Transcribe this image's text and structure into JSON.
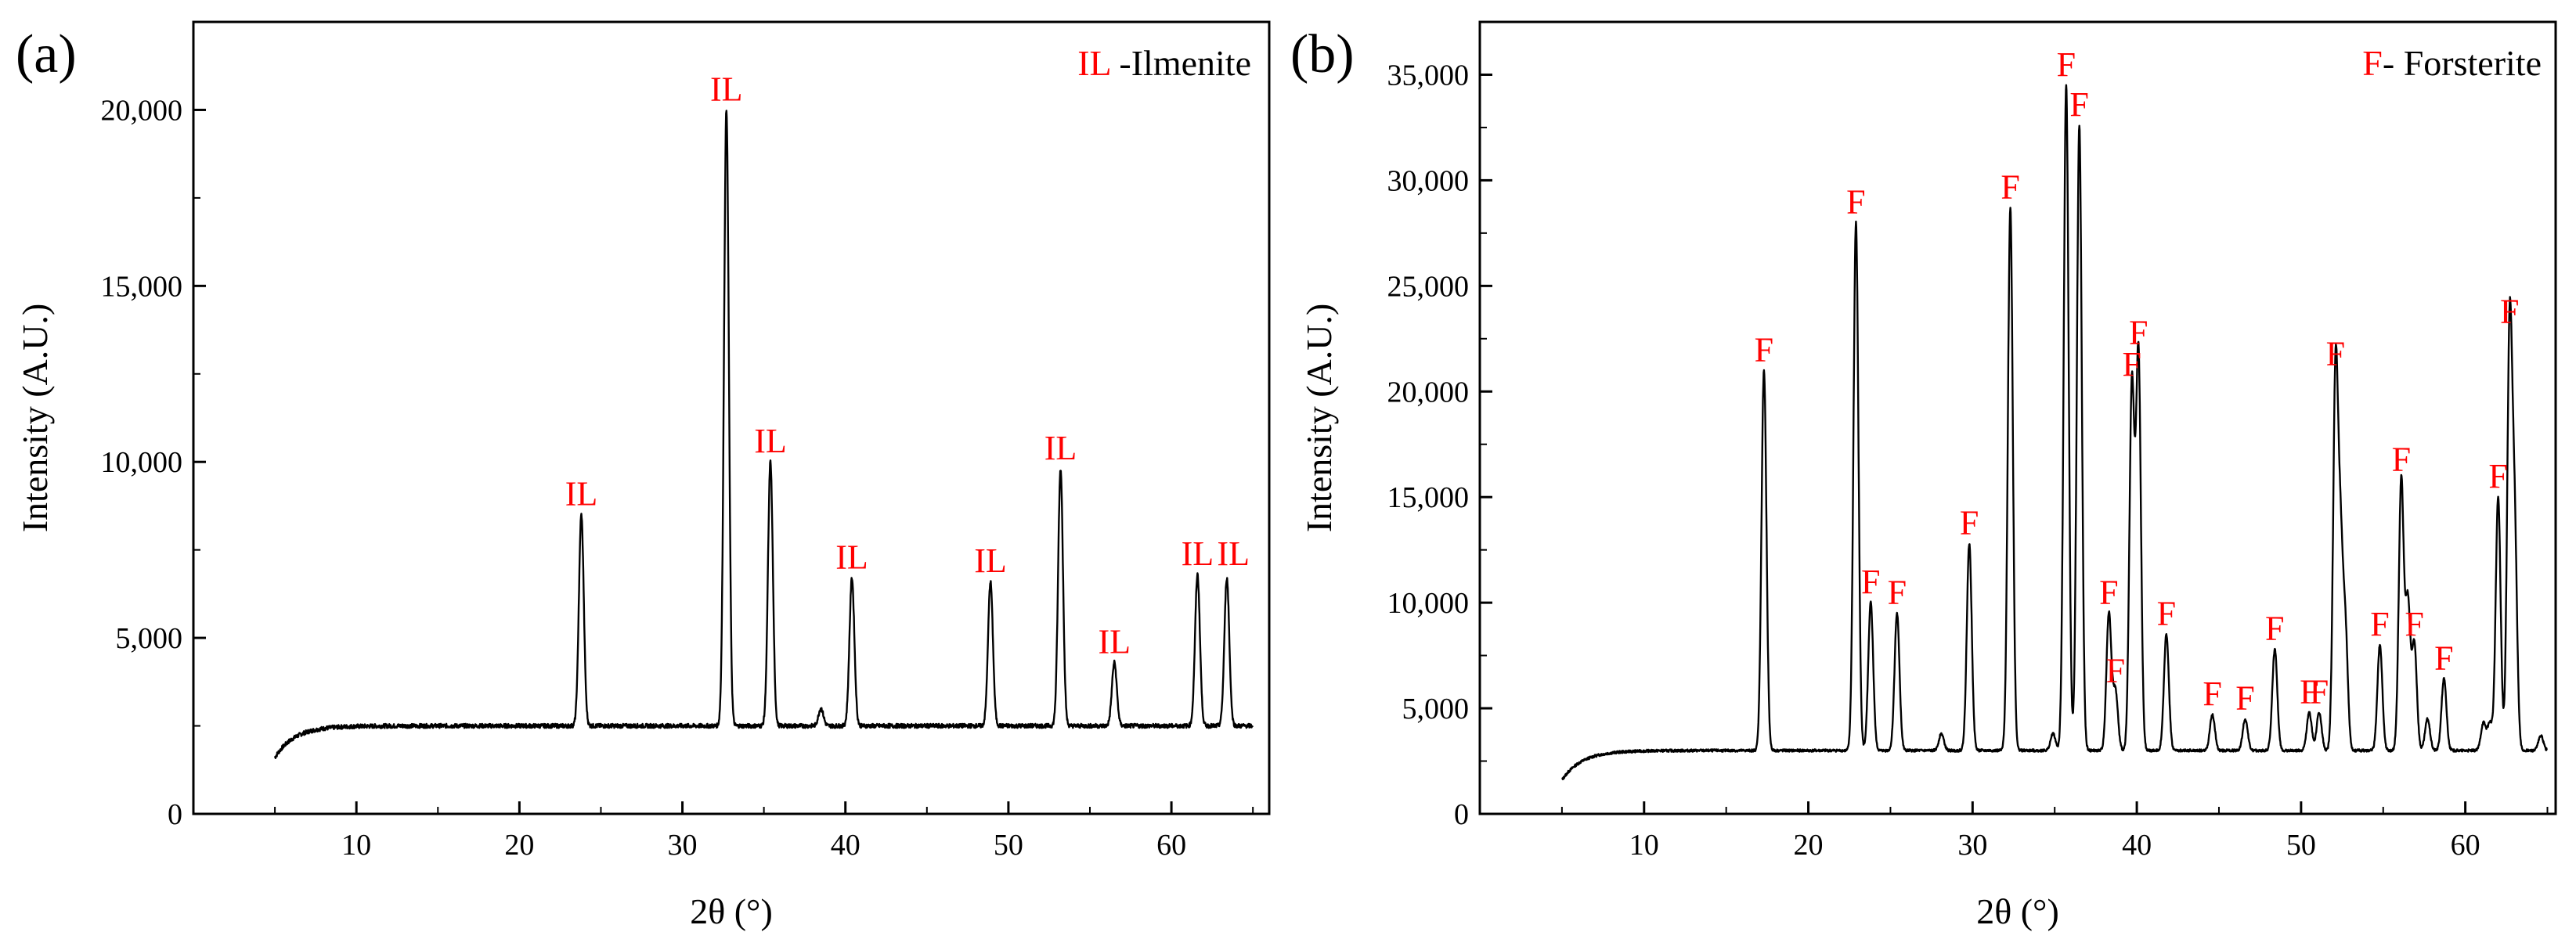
{
  "chart_data": [
    {
      "type": "line",
      "panel_label": "(a)",
      "title": "",
      "xlabel": "2θ (°)",
      "ylabel": "Intensity (A.U.)",
      "xlim": [
        0,
        66
      ],
      "ylim": [
        0,
        22500
      ],
      "xticks": [
        10,
        20,
        30,
        40,
        50,
        60
      ],
      "yticks": [
        0,
        5000,
        10000,
        15000,
        20000
      ],
      "xtick_labels": [
        "10",
        "20",
        "30",
        "40",
        "50",
        "60"
      ],
      "ytick_labels": [
        "0",
        "5,000",
        "10,000",
        "15,000",
        "20,000"
      ],
      "legend": {
        "symbol": "IL",
        "text": " -Ilmenite",
        "position": "top-right"
      },
      "marker_color": "#ff0000",
      "line_color": "#000000",
      "baseline": {
        "start_x": 5.0,
        "start_y": 1600,
        "end_x": 65.0,
        "plateau_y": 2500
      },
      "series": [
        {
          "name": "Ilmenite",
          "peaks": [
            {
              "x": 23.8,
              "y": 8500,
              "width": 0.15
            },
            {
              "x": 32.7,
              "y": 20000,
              "width": 0.15
            },
            {
              "x": 35.4,
              "y": 10000,
              "width": 0.15
            },
            {
              "x": 38.5,
              "y": 3000,
              "width": 0.15
            },
            {
              "x": 40.4,
              "y": 6700,
              "width": 0.15
            },
            {
              "x": 48.9,
              "y": 6600,
              "width": 0.15
            },
            {
              "x": 53.2,
              "y": 9800,
              "width": 0.15
            },
            {
              "x": 56.5,
              "y": 4300,
              "width": 0.15
            },
            {
              "x": 61.6,
              "y": 6800,
              "width": 0.15
            },
            {
              "x": 63.4,
              "y": 6700,
              "width": 0.15
            }
          ]
        }
      ],
      "annotations": [
        {
          "text": "IL",
          "x": 23.8,
          "y": 8500
        },
        {
          "text": "IL",
          "x": 32.7,
          "y": 20000
        },
        {
          "text": "IL",
          "x": 35.4,
          "y": 10000
        },
        {
          "text": "IL",
          "x": 40.4,
          "y": 6700
        },
        {
          "text": "IL",
          "x": 48.9,
          "y": 6600
        },
        {
          "text": "IL",
          "x": 53.2,
          "y": 9800
        },
        {
          "text": "IL",
          "x": 56.5,
          "y": 4300
        },
        {
          "text": "IL",
          "x": 61.6,
          "y": 6800
        },
        {
          "text": "IL",
          "x": 63.8,
          "y": 6800
        }
      ]
    },
    {
      "type": "line",
      "panel_label": "(b)",
      "title": "",
      "xlabel": "2θ (°)",
      "ylabel": "Intensity (A.U.)",
      "xlim": [
        0,
        65.5
      ],
      "ylim": [
        0,
        37500
      ],
      "xticks": [
        10,
        20,
        30,
        40,
        50,
        60
      ],
      "yticks": [
        0,
        5000,
        10000,
        15000,
        20000,
        25000,
        30000,
        35000
      ],
      "xtick_labels": [
        "10",
        "20",
        "30",
        "40",
        "50",
        "60"
      ],
      "ytick_labels": [
        "0",
        "5,000",
        "10,000",
        "15,000",
        "20,000",
        "25,000",
        "30,000",
        "35,000"
      ],
      "legend": {
        "symbol": "F",
        "text": "- Forsterite",
        "position": "top-right"
      },
      "marker_color": "#ff0000",
      "line_color": "#000000",
      "baseline": {
        "start_x": 5.0,
        "start_y": 1600,
        "end_x": 65.0,
        "plateau_y": 3000
      },
      "series": [
        {
          "name": "Forsterite",
          "peaks": [
            {
              "x": 17.3,
              "y": 21000,
              "width": 0.15
            },
            {
              "x": 22.9,
              "y": 28000,
              "width": 0.15
            },
            {
              "x": 23.8,
              "y": 10000,
              "width": 0.15
            },
            {
              "x": 25.4,
              "y": 9500,
              "width": 0.15
            },
            {
              "x": 28.1,
              "y": 3800,
              "width": 0.15
            },
            {
              "x": 29.8,
              "y": 12800,
              "width": 0.15
            },
            {
              "x": 32.3,
              "y": 28700,
              "width": 0.15
            },
            {
              "x": 34.9,
              "y": 3800,
              "width": 0.15
            },
            {
              "x": 35.7,
              "y": 34500,
              "width": 0.15
            },
            {
              "x": 36.5,
              "y": 32600,
              "width": 0.15
            },
            {
              "x": 38.3,
              "y": 9500,
              "width": 0.15
            },
            {
              "x": 38.7,
              "y": 5800,
              "width": 0.15
            },
            {
              "x": 39.7,
              "y": 20300,
              "width": 0.15
            },
            {
              "x": 40.1,
              "y": 21800,
              "width": 0.15
            },
            {
              "x": 41.8,
              "y": 8500,
              "width": 0.15
            },
            {
              "x": 44.6,
              "y": 4700,
              "width": 0.15
            },
            {
              "x": 46.6,
              "y": 4500,
              "width": 0.15
            },
            {
              "x": 48.4,
              "y": 7800,
              "width": 0.15
            },
            {
              "x": 50.5,
              "y": 4800,
              "width": 0.15
            },
            {
              "x": 51.1,
              "y": 4800,
              "width": 0.15
            },
            {
              "x": 52.1,
              "y": 20800,
              "width": 0.15
            },
            {
              "x": 52.4,
              "y": 12000,
              "width": 0.15
            },
            {
              "x": 52.7,
              "y": 8500,
              "width": 0.15
            },
            {
              "x": 54.8,
              "y": 8000,
              "width": 0.15
            },
            {
              "x": 56.1,
              "y": 15800,
              "width": 0.15
            },
            {
              "x": 56.5,
              "y": 10000,
              "width": 0.15
            },
            {
              "x": 56.9,
              "y": 8000,
              "width": 0.15
            },
            {
              "x": 57.7,
              "y": 4500,
              "width": 0.15
            },
            {
              "x": 58.7,
              "y": 6400,
              "width": 0.15
            },
            {
              "x": 61.1,
              "y": 4300,
              "width": 0.15
            },
            {
              "x": 61.5,
              "y": 4300,
              "width": 0.15
            },
            {
              "x": 62.0,
              "y": 15000,
              "width": 0.15
            },
            {
              "x": 62.7,
              "y": 22800,
              "width": 0.15
            },
            {
              "x": 63.0,
              "y": 13300,
              "width": 0.15
            },
            {
              "x": 64.6,
              "y": 3700,
              "width": 0.15
            }
          ]
        }
      ],
      "annotations": [
        {
          "text": "F",
          "x": 17.3,
          "y": 21000
        },
        {
          "text": "F",
          "x": 22.9,
          "y": 28000
        },
        {
          "text": "F",
          "x": 23.8,
          "y": 10000
        },
        {
          "text": "F",
          "x": 25.4,
          "y": 9500
        },
        {
          "text": "F",
          "x": 29.8,
          "y": 12800
        },
        {
          "text": "F",
          "x": 32.3,
          "y": 28700
        },
        {
          "text": "F",
          "x": 35.7,
          "y": 34500
        },
        {
          "text": "F",
          "x": 36.5,
          "y": 32600
        },
        {
          "text": "F",
          "x": 38.3,
          "y": 9500
        },
        {
          "text": "F",
          "x": 38.7,
          "y": 5800
        },
        {
          "text": "F",
          "x": 39.7,
          "y": 20300
        },
        {
          "text": "F",
          "x": 40.1,
          "y": 21800
        },
        {
          "text": "F",
          "x": 41.8,
          "y": 8500
        },
        {
          "text": "F",
          "x": 44.6,
          "y": 4700
        },
        {
          "text": "F",
          "x": 46.6,
          "y": 4500
        },
        {
          "text": "F",
          "x": 48.4,
          "y": 7800
        },
        {
          "text": "F",
          "x": 50.5,
          "y": 4800
        },
        {
          "text": "F",
          "x": 51.1,
          "y": 4800
        },
        {
          "text": "F",
          "x": 52.1,
          "y": 20800
        },
        {
          "text": "F",
          "x": 54.8,
          "y": 8000
        },
        {
          "text": "F",
          "x": 56.1,
          "y": 15800
        },
        {
          "text": "F",
          "x": 56.9,
          "y": 8000
        },
        {
          "text": "F",
          "x": 58.7,
          "y": 6400
        },
        {
          "text": "F",
          "x": 62.0,
          "y": 15000
        },
        {
          "text": "F",
          "x": 62.7,
          "y": 22800
        }
      ]
    }
  ]
}
